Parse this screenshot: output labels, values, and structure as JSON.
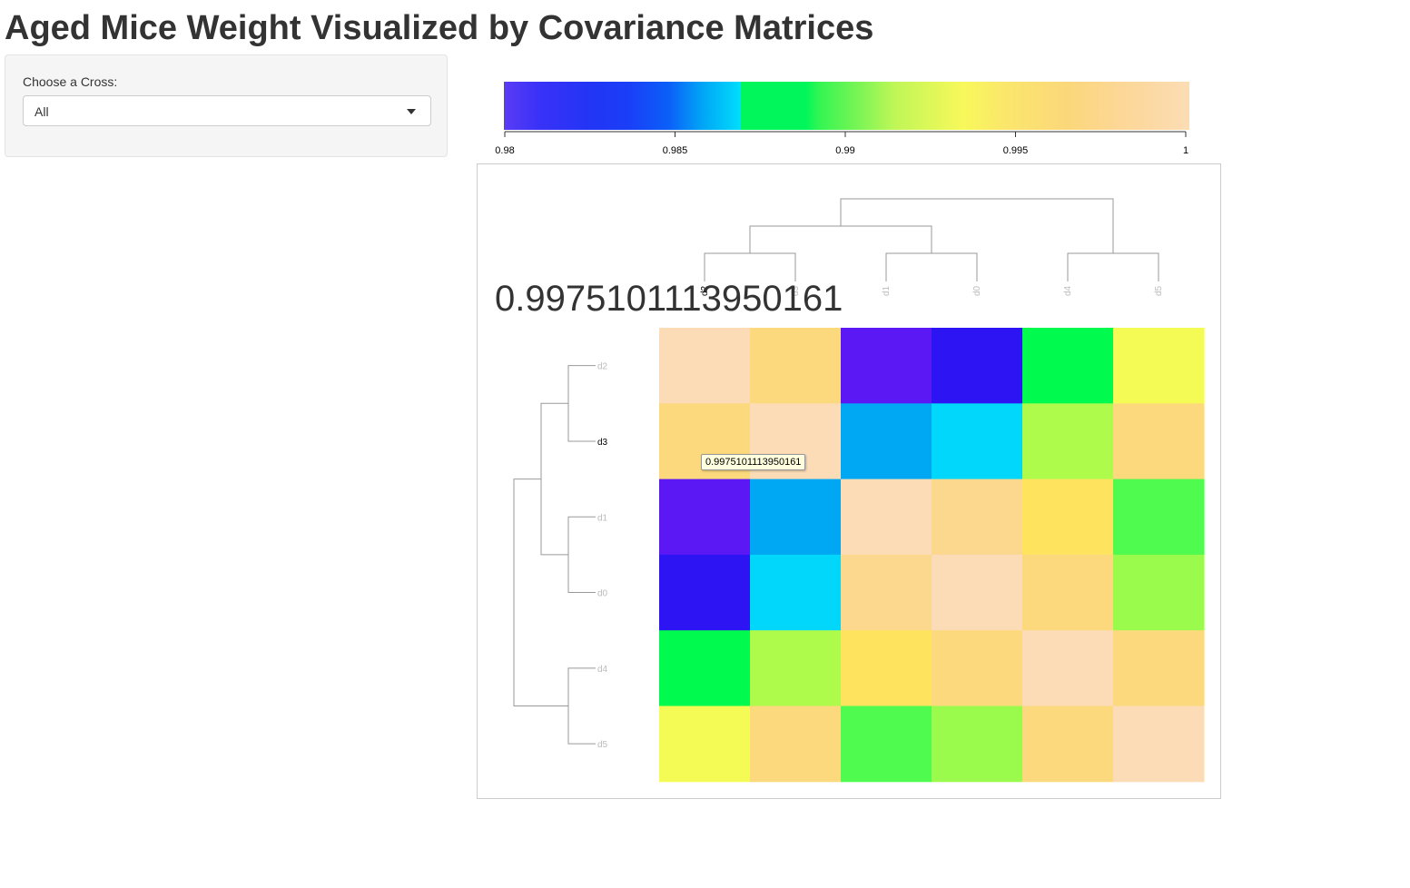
{
  "page": {
    "title": "Aged Mice Weight Visualized by Covariance Matrices"
  },
  "sidebar": {
    "cross_label": "Choose a Cross:",
    "cross_selected": "All"
  },
  "colorbar": {
    "ticks": [
      "0.98",
      "0.985",
      "0.99",
      "0.995",
      "1"
    ],
    "range": [
      0.98,
      1.0
    ]
  },
  "heatmap": {
    "hover_value": "0.9975101113950161",
    "tooltip": "0.9975101113950161",
    "hovered_row_label": "d3",
    "hovered_col_label": "d2"
  },
  "chart_data": {
    "type": "heatmap",
    "title": "",
    "row_labels": [
      "d2",
      "d3",
      "d1",
      "d0",
      "d4",
      "d5"
    ],
    "col_labels": [
      "d2",
      "d3",
      "d1",
      "d0",
      "d4",
      "d5"
    ],
    "values": [
      [
        1.0,
        0.997,
        0.98,
        0.981,
        0.988,
        0.994
      ],
      [
        0.9975,
        1.0,
        0.985,
        0.986,
        0.992,
        0.997
      ],
      [
        0.98,
        0.985,
        1.0,
        0.998,
        0.995,
        0.989
      ],
      [
        0.981,
        0.986,
        0.998,
        1.0,
        0.996,
        0.991
      ],
      [
        0.988,
        0.992,
        0.995,
        0.996,
        1.0,
        0.997
      ],
      [
        0.994,
        0.997,
        0.989,
        0.991,
        0.997,
        1.0
      ]
    ],
    "colors": [
      [
        "#fcdcb6",
        "#fcd97c",
        "#5c18f4",
        "#2d14f2",
        "#00fb4e",
        "#f4fb54"
      ],
      [
        "#fcd97c",
        "#fcdcb6",
        "#00a8f4",
        "#00d7fb",
        "#aefb4c",
        "#fcd97c"
      ],
      [
        "#5c18f4",
        "#00a8f4",
        "#fcdcb6",
        "#fcd88f",
        "#fee35e",
        "#4ffb4e"
      ],
      [
        "#2d14f2",
        "#00d7fb",
        "#fcd88f",
        "#fcdcb6",
        "#fcd97c",
        "#9bfb4c"
      ],
      [
        "#00fb4e",
        "#aefb4c",
        "#fee35e",
        "#fcd97c",
        "#fcdcb6",
        "#fcd97c"
      ],
      [
        "#f4fb54",
        "#fcd97c",
        "#4ffb4e",
        "#9bfb4c",
        "#fcd97c",
        "#fcdcb6"
      ]
    ]
  }
}
